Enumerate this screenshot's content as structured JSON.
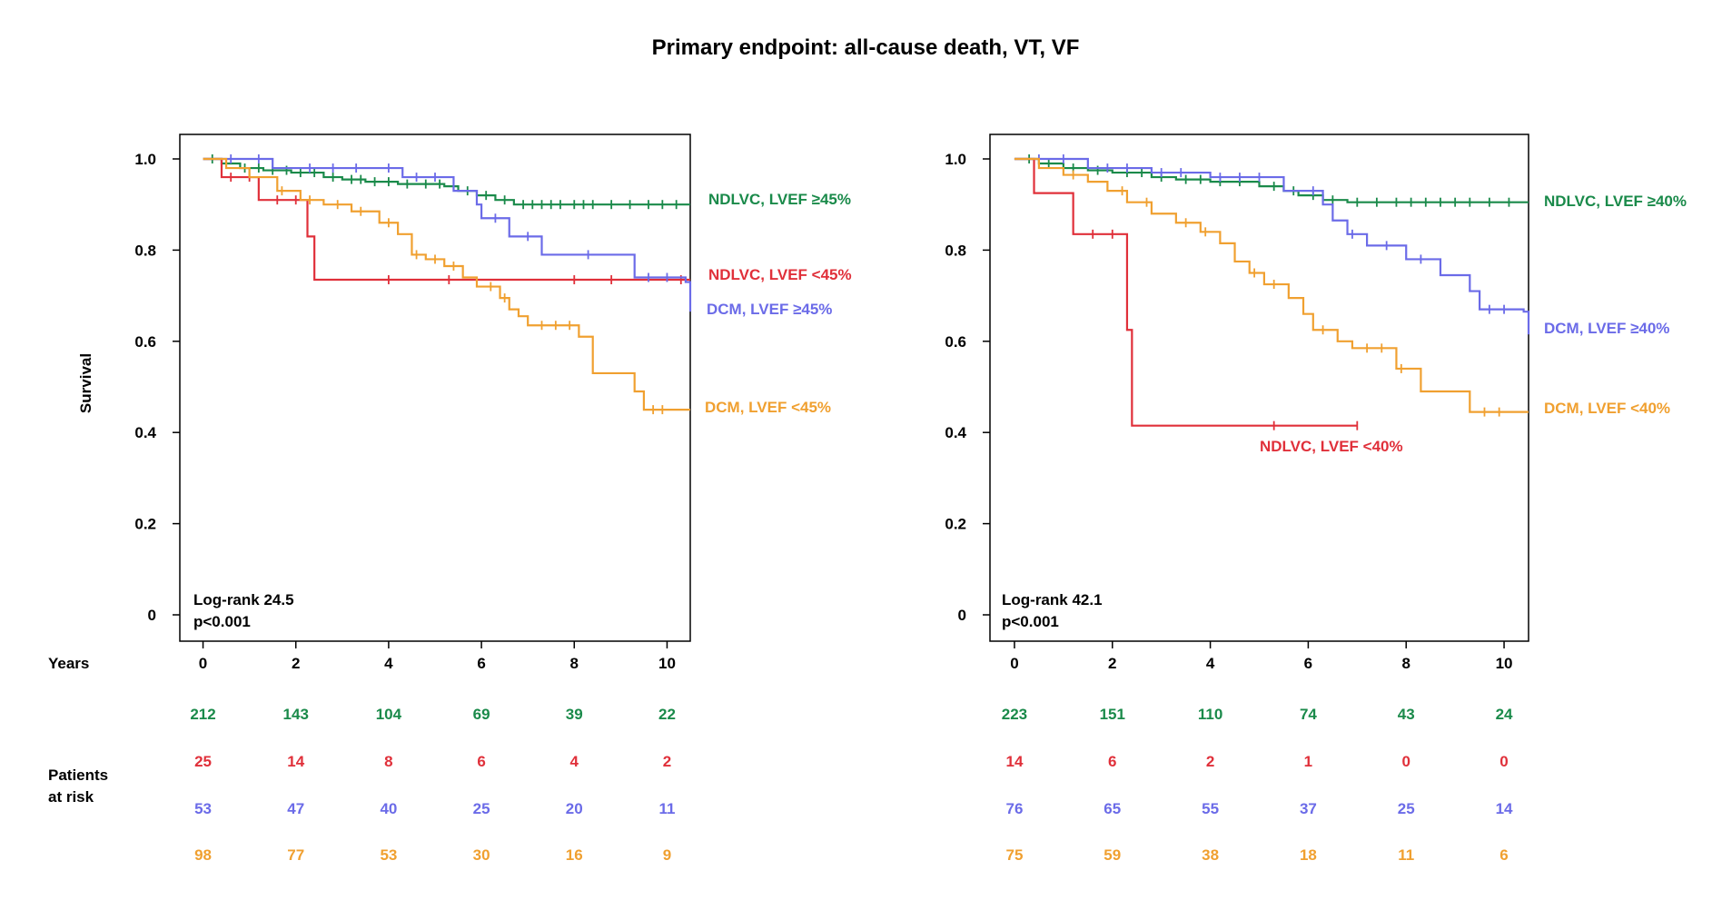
{
  "title": "Primary endpoint: all-cause death, VT, VF",
  "colors": {
    "green": "#1a8a4a",
    "red": "#e0303a",
    "blue": "#6b6be8",
    "orange": "#f0a030"
  },
  "ylabel": "Survival",
  "years_label": "Years",
  "risk_label_line1": "Patients",
  "risk_label_line2": "at risk",
  "chart_data": [
    {
      "type": "line",
      "title": "",
      "xlabel": "Years",
      "ylabel": "Survival",
      "xlim": [
        -0.5,
        10.5
      ],
      "ylim": [
        0,
        1.0
      ],
      "x_ticks": [
        "0",
        "2",
        "4",
        "6",
        "8",
        "10"
      ],
      "y_ticks": [
        "0",
        "0.2",
        "0.4",
        "0.6",
        "0.8",
        "1.0"
      ],
      "stats_line1": "Log-rank 24.5",
      "stats_line2": "p<0.001",
      "series": [
        {
          "name": "NDLVC, LVEF ≥45%",
          "color": "green",
          "steps": [
            [
              0,
              1.0
            ],
            [
              0.4,
              0.99
            ],
            [
              0.8,
              0.98
            ],
            [
              1.3,
              0.975
            ],
            [
              1.9,
              0.97
            ],
            [
              2.6,
              0.96
            ],
            [
              3.0,
              0.955
            ],
            [
              3.5,
              0.95
            ],
            [
              4.2,
              0.945
            ],
            [
              5.2,
              0.94
            ],
            [
              5.5,
              0.93
            ],
            [
              5.9,
              0.92
            ],
            [
              6.3,
              0.91
            ],
            [
              6.7,
              0.9
            ],
            [
              10.5,
              0.9
            ]
          ],
          "censors": [
            0.2,
            0.5,
            0.9,
            1.2,
            1.5,
            1.8,
            2.1,
            2.4,
            2.8,
            3.2,
            3.4,
            3.7,
            4.0,
            4.4,
            4.8,
            5.1,
            5.7,
            6.1,
            6.5,
            6.9,
            7.1,
            7.3,
            7.5,
            7.7,
            8.0,
            8.2,
            8.4,
            8.8,
            9.2,
            9.6,
            9.9,
            10.2
          ]
        },
        {
          "name": "NDLVC, LVEF <45%",
          "color": "red",
          "steps": [
            [
              0,
              1.0
            ],
            [
              0.4,
              0.96
            ],
            [
              1.2,
              0.91
            ],
            [
              2.25,
              0.83
            ],
            [
              2.4,
              0.735
            ],
            [
              10.5,
              0.735
            ]
          ],
          "censors": [
            0.6,
            1.0,
            1.6,
            2.0,
            4.0,
            5.3,
            8.0,
            8.8,
            10.3
          ]
        },
        {
          "name": "DCM, LVEF ≥45%",
          "color": "blue",
          "steps": [
            [
              0,
              1.0
            ],
            [
              1.5,
              0.98
            ],
            [
              4.3,
              0.96
            ],
            [
              5.4,
              0.93
            ],
            [
              5.9,
              0.9
            ],
            [
              6.0,
              0.87
            ],
            [
              6.6,
              0.83
            ],
            [
              7.3,
              0.79
            ],
            [
              9.3,
              0.74
            ],
            [
              10.4,
              0.73
            ],
            [
              10.5,
              0.665
            ]
          ],
          "censors": [
            0.6,
            1.2,
            2.3,
            2.8,
            3.3,
            4.0,
            4.6,
            5.0,
            6.3,
            7.0,
            8.3,
            9.6,
            10.0
          ]
        },
        {
          "name": "DCM, LVEF <45%",
          "color": "orange",
          "steps": [
            [
              0,
              1.0
            ],
            [
              0.5,
              0.98
            ],
            [
              1.0,
              0.96
            ],
            [
              1.6,
              0.93
            ],
            [
              2.1,
              0.91
            ],
            [
              2.6,
              0.9
            ],
            [
              3.2,
              0.885
            ],
            [
              3.8,
              0.86
            ],
            [
              4.2,
              0.835
            ],
            [
              4.5,
              0.79
            ],
            [
              4.8,
              0.78
            ],
            [
              5.2,
              0.765
            ],
            [
              5.6,
              0.74
            ],
            [
              5.9,
              0.72
            ],
            [
              6.4,
              0.695
            ],
            [
              6.6,
              0.67
            ],
            [
              6.8,
              0.655
            ],
            [
              7.0,
              0.635
            ],
            [
              8.1,
              0.61
            ],
            [
              8.4,
              0.585
            ],
            [
              8.4,
              0.53
            ],
            [
              9.3,
              0.49
            ],
            [
              9.5,
              0.45
            ],
            [
              10.5,
              0.45
            ]
          ],
          "censors": [
            1.7,
            2.3,
            2.9,
            3.4,
            4.0,
            4.6,
            5.0,
            5.4,
            6.2,
            6.5,
            7.3,
            7.6,
            7.9,
            9.7,
            9.9
          ]
        }
      ],
      "labels": [
        {
          "text": "NDLVC, LVEF ≥45%",
          "color": "green"
        },
        {
          "text": "NDLVC, LVEF <45%",
          "color": "red"
        },
        {
          "text": "DCM, LVEF ≥45%",
          "color": "blue"
        },
        {
          "text": "DCM, LVEF <45%",
          "color": "orange"
        }
      ],
      "risk_table": [
        {
          "color": "green",
          "values": [
            "212",
            "143",
            "104",
            "69",
            "39",
            "22"
          ]
        },
        {
          "color": "red",
          "values": [
            "25",
            "14",
            "8",
            "6",
            "4",
            "2"
          ]
        },
        {
          "color": "blue",
          "values": [
            "53",
            "47",
            "40",
            "25",
            "20",
            "11"
          ]
        },
        {
          "color": "orange",
          "values": [
            "98",
            "77",
            "53",
            "30",
            "16",
            "9"
          ]
        }
      ]
    },
    {
      "type": "line",
      "title": "",
      "xlabel": "Years",
      "ylabel": "",
      "xlim": [
        -0.5,
        10.5
      ],
      "ylim": [
        0,
        1.0
      ],
      "x_ticks": [
        "0",
        "2",
        "4",
        "6",
        "8",
        "10"
      ],
      "y_ticks": [
        "0",
        "0.2",
        "0.4",
        "0.6",
        "0.8",
        "1.0"
      ],
      "stats_line1": "Log-rank 42.1",
      "stats_line2": "p<0.001",
      "series": [
        {
          "name": "NDLVC, LVEF ≥40%",
          "color": "green",
          "steps": [
            [
              0,
              1.0
            ],
            [
              0.5,
              0.99
            ],
            [
              1.0,
              0.98
            ],
            [
              1.5,
              0.975
            ],
            [
              2.0,
              0.97
            ],
            [
              2.8,
              0.96
            ],
            [
              3.3,
              0.955
            ],
            [
              4.0,
              0.95
            ],
            [
              5.0,
              0.94
            ],
            [
              5.5,
              0.93
            ],
            [
              5.8,
              0.92
            ],
            [
              6.3,
              0.91
            ],
            [
              6.8,
              0.905
            ],
            [
              10.5,
              0.905
            ]
          ],
          "censors": [
            0.3,
            0.7,
            1.2,
            1.7,
            2.3,
            2.6,
            3.0,
            3.5,
            3.8,
            4.2,
            4.6,
            5.3,
            5.7,
            6.1,
            6.5,
            7.0,
            7.4,
            7.8,
            8.1,
            8.4,
            8.7,
            9.0,
            9.3,
            9.7,
            10.1
          ]
        },
        {
          "name": "NDLVC, LVEF <40%",
          "color": "red",
          "steps": [
            [
              0,
              1.0
            ],
            [
              0.4,
              0.925
            ],
            [
              1.2,
              0.835
            ],
            [
              2.3,
              0.625
            ],
            [
              2.4,
              0.415
            ],
            [
              7.0,
              0.415
            ]
          ],
          "censors": [
            1.6,
            2.0,
            5.3,
            7.0
          ]
        },
        {
          "name": "DCM, LVEF ≥40%",
          "color": "blue",
          "steps": [
            [
              0,
              1.0
            ],
            [
              1.5,
              0.98
            ],
            [
              2.8,
              0.97
            ],
            [
              4.0,
              0.96
            ],
            [
              5.5,
              0.93
            ],
            [
              6.3,
              0.9
            ],
            [
              6.5,
              0.865
            ],
            [
              6.8,
              0.835
            ],
            [
              7.2,
              0.81
            ],
            [
              8.0,
              0.78
            ],
            [
              8.7,
              0.745
            ],
            [
              9.3,
              0.71
            ],
            [
              9.5,
              0.67
            ],
            [
              10.4,
              0.665
            ],
            [
              10.5,
              0.615
            ]
          ],
          "censors": [
            0.5,
            1.0,
            1.9,
            2.3,
            3.0,
            3.4,
            4.2,
            4.6,
            5.0,
            6.1,
            6.9,
            7.6,
            8.3,
            9.7,
            10.0
          ]
        },
        {
          "name": "DCM, LVEF <40%",
          "color": "orange",
          "steps": [
            [
              0,
              1.0
            ],
            [
              0.5,
              0.98
            ],
            [
              1.0,
              0.965
            ],
            [
              1.5,
              0.95
            ],
            [
              1.9,
              0.93
            ],
            [
              2.3,
              0.905
            ],
            [
              2.8,
              0.88
            ],
            [
              3.3,
              0.86
            ],
            [
              3.8,
              0.84
            ],
            [
              4.2,
              0.815
            ],
            [
              4.5,
              0.775
            ],
            [
              4.8,
              0.75
            ],
            [
              5.1,
              0.725
            ],
            [
              5.6,
              0.695
            ],
            [
              5.9,
              0.66
            ],
            [
              6.1,
              0.625
            ],
            [
              6.6,
              0.6
            ],
            [
              6.9,
              0.585
            ],
            [
              7.8,
              0.565
            ],
            [
              7.8,
              0.54
            ],
            [
              8.3,
              0.49
            ],
            [
              9.3,
              0.445
            ],
            [
              10.5,
              0.445
            ]
          ],
          "censors": [
            1.2,
            2.2,
            2.7,
            3.5,
            3.9,
            4.9,
            5.3,
            6.3,
            7.2,
            7.5,
            7.9,
            9.6,
            9.9
          ]
        }
      ],
      "labels": [
        {
          "text": "NDLVC, LVEF ≥40%",
          "color": "green"
        },
        {
          "text": "NDLVC, LVEF <40%",
          "color": "red"
        },
        {
          "text": "DCM, LVEF ≥40%",
          "color": "blue"
        },
        {
          "text": "DCM, LVEF <40%",
          "color": "orange"
        }
      ],
      "risk_table": [
        {
          "color": "green",
          "values": [
            "223",
            "151",
            "110",
            "74",
            "43",
            "24"
          ]
        },
        {
          "color": "red",
          "values": [
            "14",
            "6",
            "2",
            "1",
            "0",
            "0"
          ]
        },
        {
          "color": "blue",
          "values": [
            "76",
            "65",
            "55",
            "37",
            "25",
            "14"
          ]
        },
        {
          "color": "orange",
          "values": [
            "75",
            "59",
            "38",
            "18",
            "11",
            "6"
          ]
        }
      ]
    }
  ]
}
